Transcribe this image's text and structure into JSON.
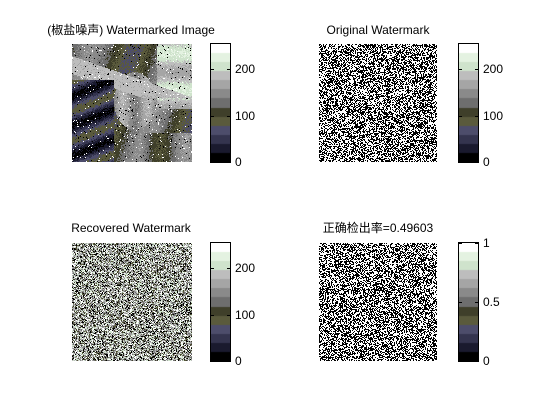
{
  "window": {
    "background": "#ffffff"
  },
  "panels": [
    {
      "id": "tl",
      "title": "(椒盐噪声) Watermarked Image",
      "content": "watermarked-image",
      "colorbar": {
        "ticks": [
          0,
          100,
          200
        ],
        "labels": [
          "0",
          "100",
          "200"
        ],
        "range": [
          0,
          255
        ]
      }
    },
    {
      "id": "tr",
      "title": "Original Watermark",
      "content": "binary-noise",
      "colorbar": {
        "ticks": [
          0,
          100,
          200
        ],
        "labels": [
          "0",
          "100",
          "200"
        ],
        "range": [
          0,
          255
        ]
      }
    },
    {
      "id": "bl",
      "title": "Recovered Watermark",
      "content": "gray-noise",
      "colorbar": {
        "ticks": [
          0,
          100,
          200
        ],
        "labels": [
          "0",
          "100",
          "200"
        ],
        "range": [
          0,
          255
        ]
      }
    },
    {
      "id": "br",
      "title": "正确检出率=0.49603",
      "content": "binary-noise",
      "colorbar": {
        "ticks": [
          0,
          0.5,
          1
        ],
        "labels": [
          "0",
          "0.5",
          "1"
        ],
        "range": [
          0,
          1
        ]
      }
    }
  ],
  "colormap": [
    "#000000",
    "#1a1a2e",
    "#34344e",
    "#4d4d6b",
    "#5a5a3c",
    "#3f3f2a",
    "#6e6e6e",
    "#8a8a8a",
    "#a5a5a5",
    "#bdbdbd",
    "#cfe3cc",
    "#e4f2e1",
    "#ffffff"
  ]
}
